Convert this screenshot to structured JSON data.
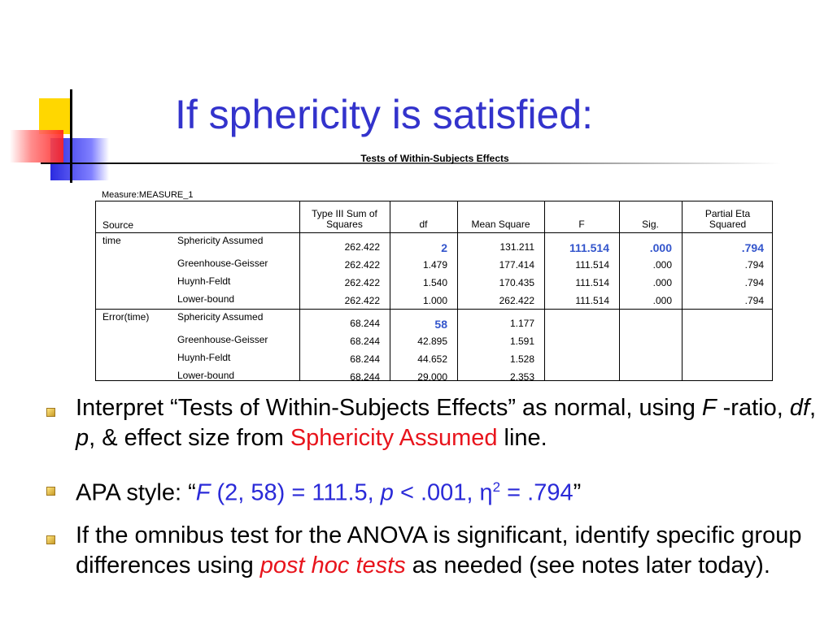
{
  "title": "If sphericity is satisfied:",
  "table": {
    "caption": "Tests of Within-Subjects Effects",
    "measure": "Measure:MEASURE_1",
    "source_header": "Source",
    "headers": [
      "Type III Sum of Squares",
      "df",
      "Mean Square",
      "F",
      "Sig.",
      "Partial Eta Squared"
    ],
    "groups": [
      {
        "source": "time",
        "rows": [
          {
            "effect": "Sphericity Assumed",
            "cells": [
              {
                "text": "262.422"
              },
              {
                "text": "2",
                "highlight": true
              },
              {
                "text": "131.211"
              },
              {
                "text": "111.514",
                "highlight": true
              },
              {
                "text": ".000",
                "highlight": true
              },
              {
                "text": ".794",
                "highlight": true
              }
            ]
          },
          {
            "effect": "Greenhouse-Geisser",
            "cells": [
              {
                "text": "262.422"
              },
              {
                "text": "1.479"
              },
              {
                "text": "177.414"
              },
              {
                "text": "111.514"
              },
              {
                "text": ".000"
              },
              {
                "text": ".794"
              }
            ]
          },
          {
            "effect": "Huynh-Feldt",
            "cells": [
              {
                "text": "262.422"
              },
              {
                "text": "1.540"
              },
              {
                "text": "170.435"
              },
              {
                "text": "111.514"
              },
              {
                "text": ".000"
              },
              {
                "text": ".794"
              }
            ]
          },
          {
            "effect": "Lower-bound",
            "cells": [
              {
                "text": "262.422"
              },
              {
                "text": "1.000"
              },
              {
                "text": "262.422"
              },
              {
                "text": "111.514"
              },
              {
                "text": ".000"
              },
              {
                "text": ".794"
              }
            ]
          }
        ]
      },
      {
        "source": "Error(time)",
        "rows": [
          {
            "effect": "Sphericity Assumed",
            "cells": [
              {
                "text": "68.244"
              },
              {
                "text": "58",
                "highlight": true
              },
              {
                "text": "1.177"
              }
            ]
          },
          {
            "effect": "Greenhouse-Geisser",
            "cells": [
              {
                "text": "68.244"
              },
              {
                "text": "42.895"
              },
              {
                "text": "1.591"
              }
            ]
          },
          {
            "effect": "Huynh-Feldt",
            "cells": [
              {
                "text": "68.244"
              },
              {
                "text": "44.652"
              },
              {
                "text": "1.528"
              }
            ]
          },
          {
            "effect": "Lower-bound",
            "cells": [
              {
                "text": "68.244"
              },
              {
                "text": "29.000"
              },
              {
                "text": "2.353"
              }
            ]
          }
        ]
      }
    ]
  },
  "bullets": [
    [
      {
        "text": "Interpret “Tests of Within-Subjects Effects” as normal, using "
      },
      {
        "text": "F",
        "italic": true
      },
      {
        "text": " -ratio, "
      },
      {
        "text": "df",
        "italic": true
      },
      {
        "text": ", "
      },
      {
        "text": "p",
        "italic": true
      },
      {
        "text": ", & effect size from "
      },
      {
        "text": "Sphericity Assumed",
        "color": "red"
      },
      {
        "text": " line."
      }
    ],
    [
      {
        "text": "APA style: “"
      },
      {
        "text": "F",
        "italic": true,
        "color": "blue"
      },
      {
        "text": " (2, 58) = 111.5, ",
        "color": "blue"
      },
      {
        "text": "p",
        "italic": true,
        "color": "blue"
      },
      {
        "text": " < .001, η",
        "color": "blue"
      },
      {
        "text": "2",
        "color": "blue",
        "sup": true
      },
      {
        "text": " = .794",
        "color": "blue"
      },
      {
        "text": "”"
      }
    ],
    [
      {
        "text": "If the omnibus test for the ANOVA is significant, identify specific group differences using "
      },
      {
        "text": "post hoc tests",
        "italic": true,
        "color": "red"
      },
      {
        "text": " as needed (see notes later today)."
      }
    ]
  ]
}
